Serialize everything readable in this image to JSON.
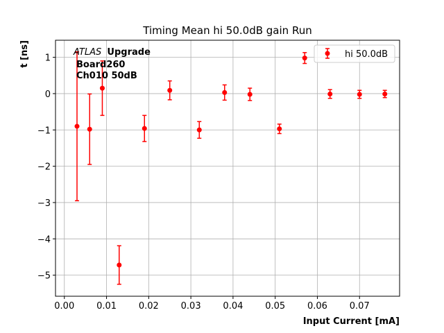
{
  "chart_data": {
    "type": "scatter",
    "title": "Timing Mean hi 50.0dB gain Run",
    "xlabel": "Input Current [mA]",
    "ylabel": "t [ns]",
    "xlim": [
      -0.0021,
      0.0795
    ],
    "ylim": [
      -5.58,
      1.47
    ],
    "xticks": [
      0.0,
      0.01,
      0.02,
      0.03,
      0.04,
      0.05,
      0.06,
      0.07
    ],
    "xtick_labels": [
      "0.00",
      "0.01",
      "0.02",
      "0.03",
      "0.04",
      "0.05",
      "0.06",
      "0.07"
    ],
    "yticks": [
      1,
      0,
      -1,
      -2,
      -3,
      -4,
      -5
    ],
    "ytick_labels": [
      "1",
      "0",
      "−1",
      "−2",
      "−3",
      "−4",
      "−5"
    ],
    "grid": true,
    "legend_position": "upper right",
    "annotation": {
      "experiment_italic": "ATLAS",
      "experiment_bold": "Upgrade",
      "line2": "Board260",
      "line3": "Ch010 50dB"
    },
    "series": [
      {
        "name": "hi 50.0dB",
        "color": "#ff0000",
        "marker": "circle",
        "x": [
          0.003,
          0.006,
          0.009,
          0.013,
          0.019,
          0.025,
          0.032,
          0.038,
          0.044,
          0.051,
          0.057,
          0.063,
          0.07,
          0.076
        ],
        "y": [
          -0.9,
          -0.98,
          0.15,
          -4.72,
          -0.96,
          0.09,
          -1.0,
          0.03,
          -0.02,
          -0.97,
          0.98,
          -0.01,
          -0.02,
          -0.01
        ],
        "yerr": [
          2.05,
          0.97,
          0.75,
          0.53,
          0.36,
          0.26,
          0.23,
          0.21,
          0.17,
          0.13,
          0.15,
          0.12,
          0.11,
          0.1
        ]
      }
    ]
  }
}
